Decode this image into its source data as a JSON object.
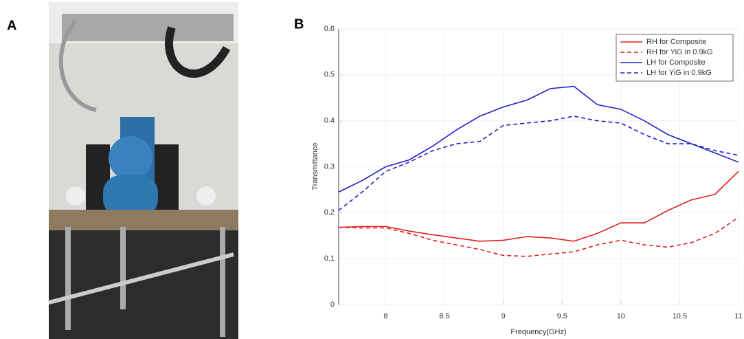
{
  "panel_labels": [
    "A",
    "B"
  ],
  "chart_data": {
    "type": "line",
    "xlabel": "Frequency(GHz)",
    "ylabel": "Transmittance",
    "x": [
      7.6,
      7.8,
      8.0,
      8.2,
      8.4,
      8.6,
      8.8,
      9.0,
      9.2,
      9.4,
      9.6,
      9.8,
      10.0,
      10.2,
      10.4,
      10.6,
      10.8,
      11.0
    ],
    "series": [
      {
        "name": "RH for Composite",
        "color": "#e02020",
        "linestyle": "solid",
        "values": [
          0.168,
          0.17,
          0.17,
          0.16,
          0.152,
          0.145,
          0.138,
          0.14,
          0.148,
          0.145,
          0.138,
          0.155,
          0.178,
          0.178,
          0.205,
          0.228,
          0.24,
          0.29
        ]
      },
      {
        "name": "RH for YiG in 0.9kG",
        "color": "#e02020",
        "linestyle": "dashed",
        "values": [
          0.168,
          0.167,
          0.167,
          0.155,
          0.14,
          0.13,
          0.12,
          0.107,
          0.105,
          0.11,
          0.115,
          0.13,
          0.14,
          0.13,
          0.125,
          0.135,
          0.155,
          0.19
        ]
      },
      {
        "name": "LH for Composite",
        "color": "#2020c8",
        "linestyle": "solid",
        "values": [
          0.245,
          0.27,
          0.3,
          0.315,
          0.345,
          0.38,
          0.41,
          0.43,
          0.445,
          0.47,
          0.475,
          0.435,
          0.425,
          0.4,
          0.37,
          0.35,
          0.33,
          0.31
        ]
      },
      {
        "name": "LH for YiG in 0.9kG",
        "color": "#2020c8",
        "linestyle": "dashed",
        "values": [
          0.205,
          0.245,
          0.29,
          0.31,
          0.335,
          0.35,
          0.355,
          0.39,
          0.395,
          0.4,
          0.41,
          0.4,
          0.395,
          0.37,
          0.35,
          0.35,
          0.335,
          0.325
        ]
      }
    ],
    "xlim": [
      7.6,
      11
    ],
    "xticks": [
      8,
      8.5,
      9,
      9.5,
      10,
      10.5,
      11
    ],
    "ylim": [
      0,
      0.6
    ],
    "yticks": [
      0,
      0.1,
      0.2,
      0.3,
      0.4,
      0.5,
      0.6
    ],
    "grid": true,
    "legend": "upper right"
  }
}
